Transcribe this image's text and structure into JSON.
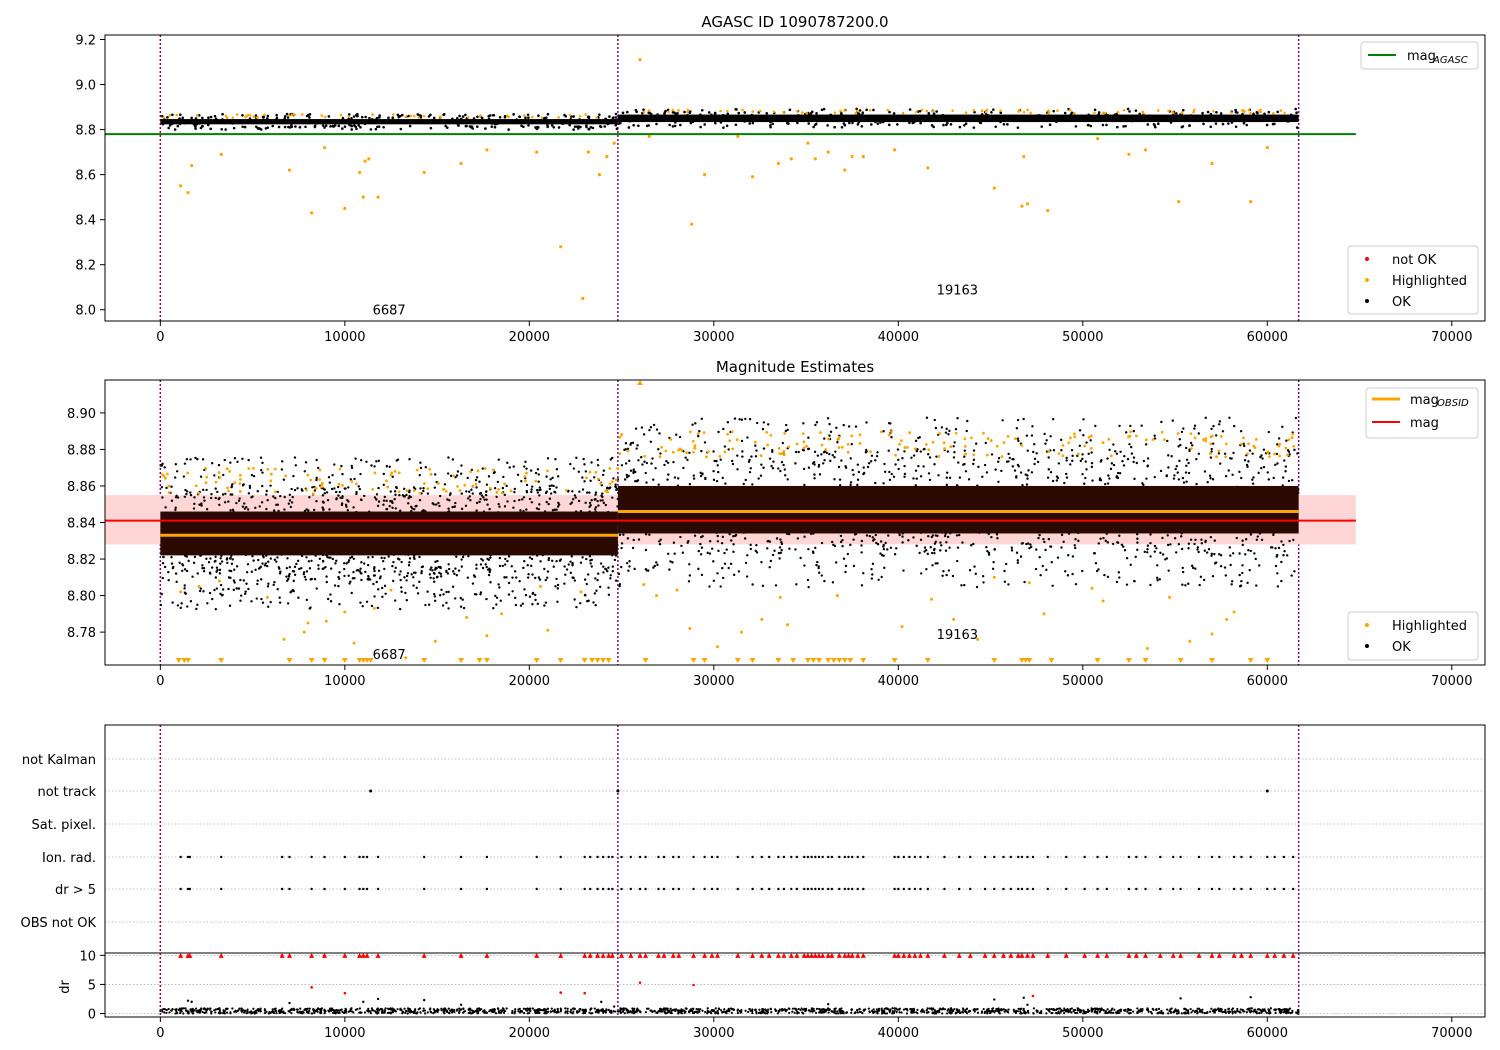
{
  "figure": {
    "colors": {
      "ok": "#000000",
      "highlighted": "#ffa500",
      "not_ok": "#ff0000",
      "mag_agasc": "#008000",
      "mag": "#ff0000",
      "mag_obsid": "#ffa500",
      "mag_band": "#ffd6d6",
      "obsid_band": "#2a0a00",
      "obs_boundary": "#800080",
      "grid": "#b0b0b0"
    },
    "x_ticks": [
      "0",
      "10000",
      "20000",
      "30000",
      "40000",
      "50000",
      "60000",
      "70000"
    ]
  },
  "chart_data": [
    {
      "type": "scatter",
      "title": "AGASC ID 1090787200.0",
      "xlim": [
        -3000,
        71800
      ],
      "ylim": [
        7.95,
        9.22
      ],
      "y_ticks": [
        "8.0",
        "8.2",
        "8.4",
        "8.6",
        "8.8",
        "9.0",
        "9.2"
      ],
      "obs_boundaries": [
        0,
        24800,
        61700
      ],
      "obs_labels": [
        {
          "text": "6687",
          "x": 12400,
          "y": 8.0
        },
        {
          "text": "19163",
          "x": 43200,
          "y": 8.09
        }
      ],
      "mag_agasc": {
        "value": 8.78,
        "x_range": [
          -3000,
          64800
        ]
      },
      "ok_bands": [
        {
          "x_range": [
            0,
            24800
          ],
          "y_range": [
            8.81,
            8.86
          ]
        },
        {
          "x_range": [
            24800,
            61700
          ],
          "y_range": [
            8.82,
            8.88
          ]
        }
      ],
      "highlighted_points": [
        [
          1100,
          8.55
        ],
        [
          1500,
          8.52
        ],
        [
          1700,
          8.64
        ],
        [
          3300,
          8.69
        ],
        [
          7000,
          8.62
        ],
        [
          8200,
          8.43
        ],
        [
          8900,
          8.72
        ],
        [
          10000,
          8.45
        ],
        [
          10800,
          8.61
        ],
        [
          11000,
          8.5
        ],
        [
          11100,
          8.66
        ],
        [
          11300,
          8.67
        ],
        [
          11800,
          8.5
        ],
        [
          14300,
          8.61
        ],
        [
          16300,
          8.65
        ],
        [
          17700,
          8.71
        ],
        [
          20400,
          8.7
        ],
        [
          21700,
          8.28
        ],
        [
          22900,
          8.05
        ],
        [
          23200,
          8.7
        ],
        [
          23800,
          8.6
        ],
        [
          24200,
          8.68
        ],
        [
          24600,
          8.74
        ],
        [
          26000,
          9.11
        ],
        [
          26500,
          8.77
        ],
        [
          28800,
          8.38
        ],
        [
          29500,
          8.6
        ],
        [
          31300,
          8.77
        ],
        [
          32100,
          8.59
        ],
        [
          33500,
          8.65
        ],
        [
          34200,
          8.67
        ],
        [
          35100,
          8.74
        ],
        [
          35500,
          8.67
        ],
        [
          36200,
          8.7
        ],
        [
          37100,
          8.62
        ],
        [
          37500,
          8.68
        ],
        [
          38100,
          8.68
        ],
        [
          39800,
          8.71
        ],
        [
          41600,
          8.63
        ],
        [
          45200,
          8.54
        ],
        [
          46700,
          8.46
        ],
        [
          47000,
          8.47
        ],
        [
          46800,
          8.68
        ],
        [
          48100,
          8.44
        ],
        [
          50800,
          8.76
        ],
        [
          52500,
          8.69
        ],
        [
          53400,
          8.71
        ],
        [
          55200,
          8.48
        ],
        [
          57000,
          8.65
        ],
        [
          59100,
          8.48
        ],
        [
          60000,
          8.72
        ]
      ],
      "legend_upper": [
        {
          "label": "mag",
          "sub": "AGASC"
        }
      ],
      "legend_lower": [
        "not OK",
        "Highlighted",
        "OK"
      ]
    },
    {
      "type": "scatter",
      "title": "Magnitude Estimates",
      "xlim": [
        -3000,
        71800
      ],
      "ylim": [
        8.762,
        8.918
      ],
      "y_ticks": [
        "8.78",
        "8.80",
        "8.82",
        "8.84",
        "8.86",
        "8.88",
        "8.90"
      ],
      "obs_boundaries": [
        0,
        24800,
        61700
      ],
      "obs_labels": [
        {
          "text": "6687",
          "x": 12400,
          "y": 8.768
        },
        {
          "text": "19163",
          "x": 43200,
          "y": 8.779
        }
      ],
      "mag": {
        "value": 8.841,
        "band": [
          8.828,
          8.855
        ],
        "x_range": [
          -3000,
          64800
        ]
      },
      "mag_obsid": [
        {
          "x_range": [
            0,
            24800
          ],
          "value": 8.833
        },
        {
          "x_range": [
            24800,
            61700
          ],
          "value": 8.846
        }
      ],
      "ok_bands": [
        {
          "x_range": [
            0,
            24800
          ],
          "y_range": [
            8.808,
            8.86
          ]
        },
        {
          "x_range": [
            24800,
            61700
          ],
          "y_range": [
            8.822,
            8.88
          ]
        }
      ],
      "inner_bands": [
        {
          "x_range": [
            0,
            24800
          ],
          "y_range": [
            8.822,
            8.846
          ]
        },
        {
          "x_range": [
            24800,
            61700
          ],
          "y_range": [
            8.834,
            8.86
          ]
        }
      ],
      "highlighted_points": [
        [
          1100,
          8.802
        ],
        [
          2100,
          8.805
        ],
        [
          3200,
          8.808
        ],
        [
          5800,
          8.799
        ],
        [
          6700,
          8.776
        ],
        [
          7800,
          8.78
        ],
        [
          8000,
          8.785
        ],
        [
          9000,
          8.786
        ],
        [
          10000,
          8.791
        ],
        [
          10500,
          8.774
        ],
        [
          11600,
          8.793
        ],
        [
          12500,
          8.803
        ],
        [
          13300,
          8.766
        ],
        [
          14900,
          8.775
        ],
        [
          16600,
          8.788
        ],
        [
          17700,
          8.778
        ],
        [
          18500,
          8.79
        ],
        [
          20600,
          8.805
        ],
        [
          21000,
          8.781
        ],
        [
          22800,
          8.802
        ],
        [
          26200,
          8.806
        ],
        [
          26900,
          8.8
        ],
        [
          28000,
          8.803
        ],
        [
          28700,
          8.782
        ],
        [
          30200,
          8.772
        ],
        [
          31500,
          8.78
        ],
        [
          32600,
          8.787
        ],
        [
          33600,
          8.799
        ],
        [
          34000,
          8.784
        ],
        [
          36700,
          8.8
        ],
        [
          40200,
          8.783
        ],
        [
          41800,
          8.798
        ],
        [
          43000,
          8.787
        ],
        [
          44300,
          8.776
        ],
        [
          45200,
          8.81
        ],
        [
          47100,
          8.807
        ],
        [
          47900,
          8.79
        ],
        [
          50500,
          8.804
        ],
        [
          51100,
          8.797
        ],
        [
          53500,
          8.771
        ],
        [
          54700,
          8.799
        ],
        [
          55800,
          8.775
        ],
        [
          57000,
          8.779
        ],
        [
          57800,
          8.787
        ],
        [
          58200,
          8.791
        ]
      ],
      "bottom_markers_x": [
        1000,
        1300,
        1500,
        3300,
        7000,
        8200,
        8900,
        10000,
        10800,
        11000,
        11200,
        11400,
        14300,
        16300,
        17300,
        17700,
        20400,
        21700,
        23000,
        23400,
        23700,
        24000,
        24300,
        26300,
        28900,
        29500,
        31300,
        32100,
        33500,
        34300,
        35100,
        35400,
        35700,
        36200,
        36500,
        36800,
        37100,
        37400,
        38100,
        39800,
        41600,
        45200,
        46700,
        46900,
        47100,
        48300,
        50800,
        52500,
        53400,
        55300,
        57000,
        59100,
        60000
      ],
      "top_marker": {
        "x": 26000,
        "y": 8.918
      },
      "legend_upper": [
        {
          "label": "mag",
          "sub": "OBSID"
        },
        {
          "label": "mag",
          "sub": ""
        }
      ],
      "legend_lower": [
        "Highlighted",
        "OK"
      ]
    },
    {
      "type": "scatter",
      "title": "",
      "xlim": [
        -3000,
        71800
      ],
      "categories": [
        "not Kalman",
        "not track",
        "Sat. pixel.",
        "Ion. rad.",
        "dr > 5",
        "OBS not OK"
      ],
      "obs_boundaries": [
        0,
        24800,
        61700
      ],
      "not_track_x": [
        11400,
        24800,
        60000
      ],
      "flag_x": [
        1100,
        1500,
        1600,
        3300,
        6600,
        7000,
        8200,
        8900,
        10000,
        10800,
        11000,
        11200,
        11800,
        14300,
        16300,
        17700,
        20400,
        21700,
        23000,
        23300,
        23700,
        24000,
        24300,
        24500,
        25000,
        25500,
        26000,
        26300,
        27000,
        27300,
        27800,
        28100,
        28900,
        29500,
        29900,
        30200,
        31300,
        32100,
        32600,
        33000,
        33500,
        33800,
        34200,
        34500,
        34900,
        35100,
        35300,
        35500,
        35700,
        35900,
        36200,
        36400,
        36800,
        37100,
        37300,
        37500,
        37800,
        38100,
        39800,
        40000,
        40300,
        40600,
        40900,
        41200,
        41600,
        42500,
        43300,
        43900,
        44700,
        45200,
        45700,
        46100,
        46500,
        46700,
        47000,
        47300,
        48100,
        49100,
        50100,
        50800,
        51300,
        52500,
        52900,
        53400,
        54200,
        54900,
        55300,
        56300,
        57000,
        57400,
        58200,
        58600,
        59100,
        60000,
        60400,
        60900,
        61400
      ],
      "dr_panel": {
        "ylabel": "dr",
        "ylim": [
          -0.6,
          10.4
        ],
        "y_ticks": [
          "0",
          "5",
          "10"
        ],
        "clip_value": 10,
        "red_points": [
          [
            8200,
            4.5
          ],
          [
            10000,
            3.5
          ],
          [
            21700,
            3.6
          ],
          [
            23000,
            3.5
          ],
          [
            26000,
            5.3
          ],
          [
            28900,
            4.9
          ],
          [
            47300,
            3.0
          ]
        ],
        "black_scatter": [
          [
            1500,
            2.2
          ],
          [
            1700,
            2.0
          ],
          [
            7000,
            1.8
          ],
          [
            11000,
            2.0
          ],
          [
            11800,
            2.5
          ],
          [
            14300,
            2.3
          ],
          [
            16300,
            1.5
          ],
          [
            23900,
            2.0
          ],
          [
            24600,
            1.2
          ],
          [
            36200,
            1.6
          ],
          [
            45200,
            2.4
          ],
          [
            46800,
            2.7
          ],
          [
            47000,
            1.5
          ],
          [
            55300,
            2.6
          ],
          [
            59100,
            2.8
          ]
        ]
      }
    }
  ]
}
